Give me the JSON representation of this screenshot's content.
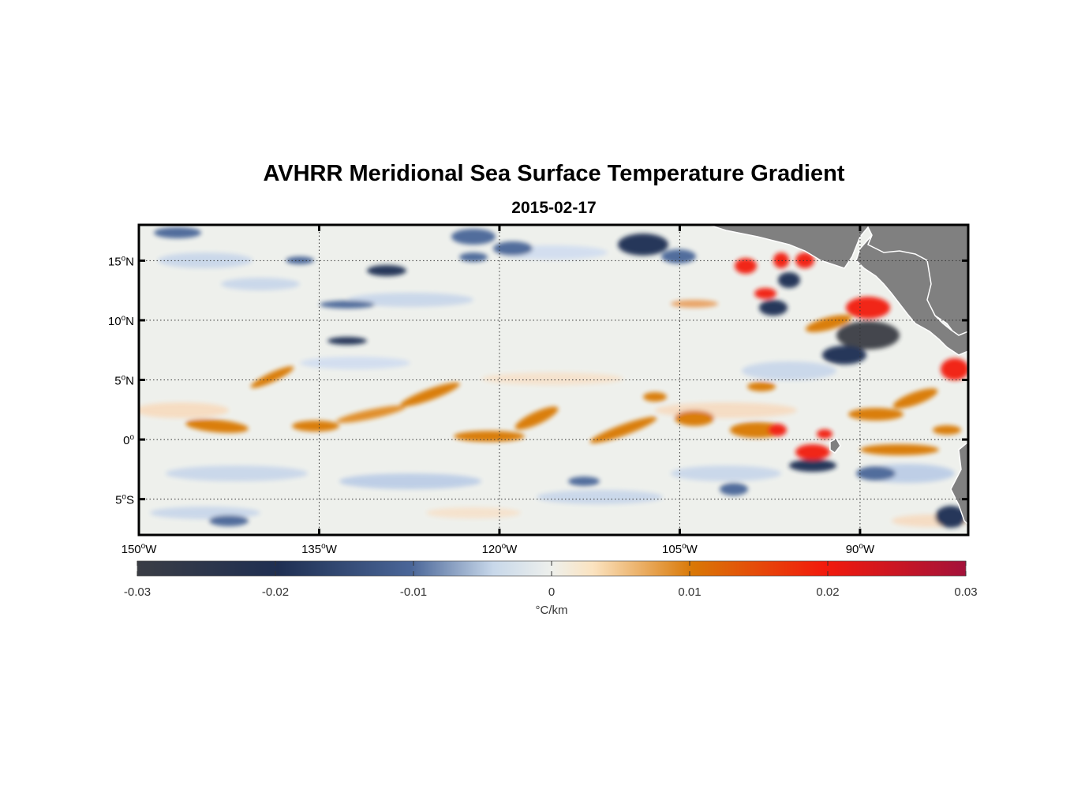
{
  "title": "AVHRR Meridional Sea Surface Temperature Gradient",
  "subtitle": "2015-02-17",
  "map": {
    "lon_range": [
      -150,
      -81
    ],
    "lat_range": [
      -8,
      18
    ],
    "lat_ticks": [
      {
        "value": 15,
        "label": "15",
        "hemi": "N"
      },
      {
        "value": 10,
        "label": "10",
        "hemi": "N"
      },
      {
        "value": 5,
        "label": "5",
        "hemi": "N"
      },
      {
        "value": 0,
        "label": "0",
        "hemi": ""
      },
      {
        "value": -5,
        "label": "5",
        "hemi": "S"
      }
    ],
    "lon_ticks": [
      {
        "value": -150,
        "label": "150",
        "hemi": "W"
      },
      {
        "value": -135,
        "label": "135",
        "hemi": "W"
      },
      {
        "value": -120,
        "label": "120",
        "hemi": "W"
      },
      {
        "value": -105,
        "label": "105",
        "hemi": "W"
      },
      {
        "value": -90,
        "label": "90",
        "hemi": "W"
      }
    ],
    "grid": true,
    "land_color": "#808080",
    "colors": {
      "neg3": "#3a3d45",
      "neg2": "#1f2f52",
      "neg1": "#4a6698",
      "zero": "#eef0ec",
      "pos1": "#d97806",
      "pos2": "#f21a0c",
      "pos3": "#a3123a"
    }
  },
  "colorbar": {
    "ticks": [
      "-0.03",
      "-0.02",
      "-0.01",
      "0",
      "0.01",
      "0.02",
      "0.03"
    ],
    "label": "°C/km",
    "range": [
      -0.03,
      0.03
    ]
  }
}
